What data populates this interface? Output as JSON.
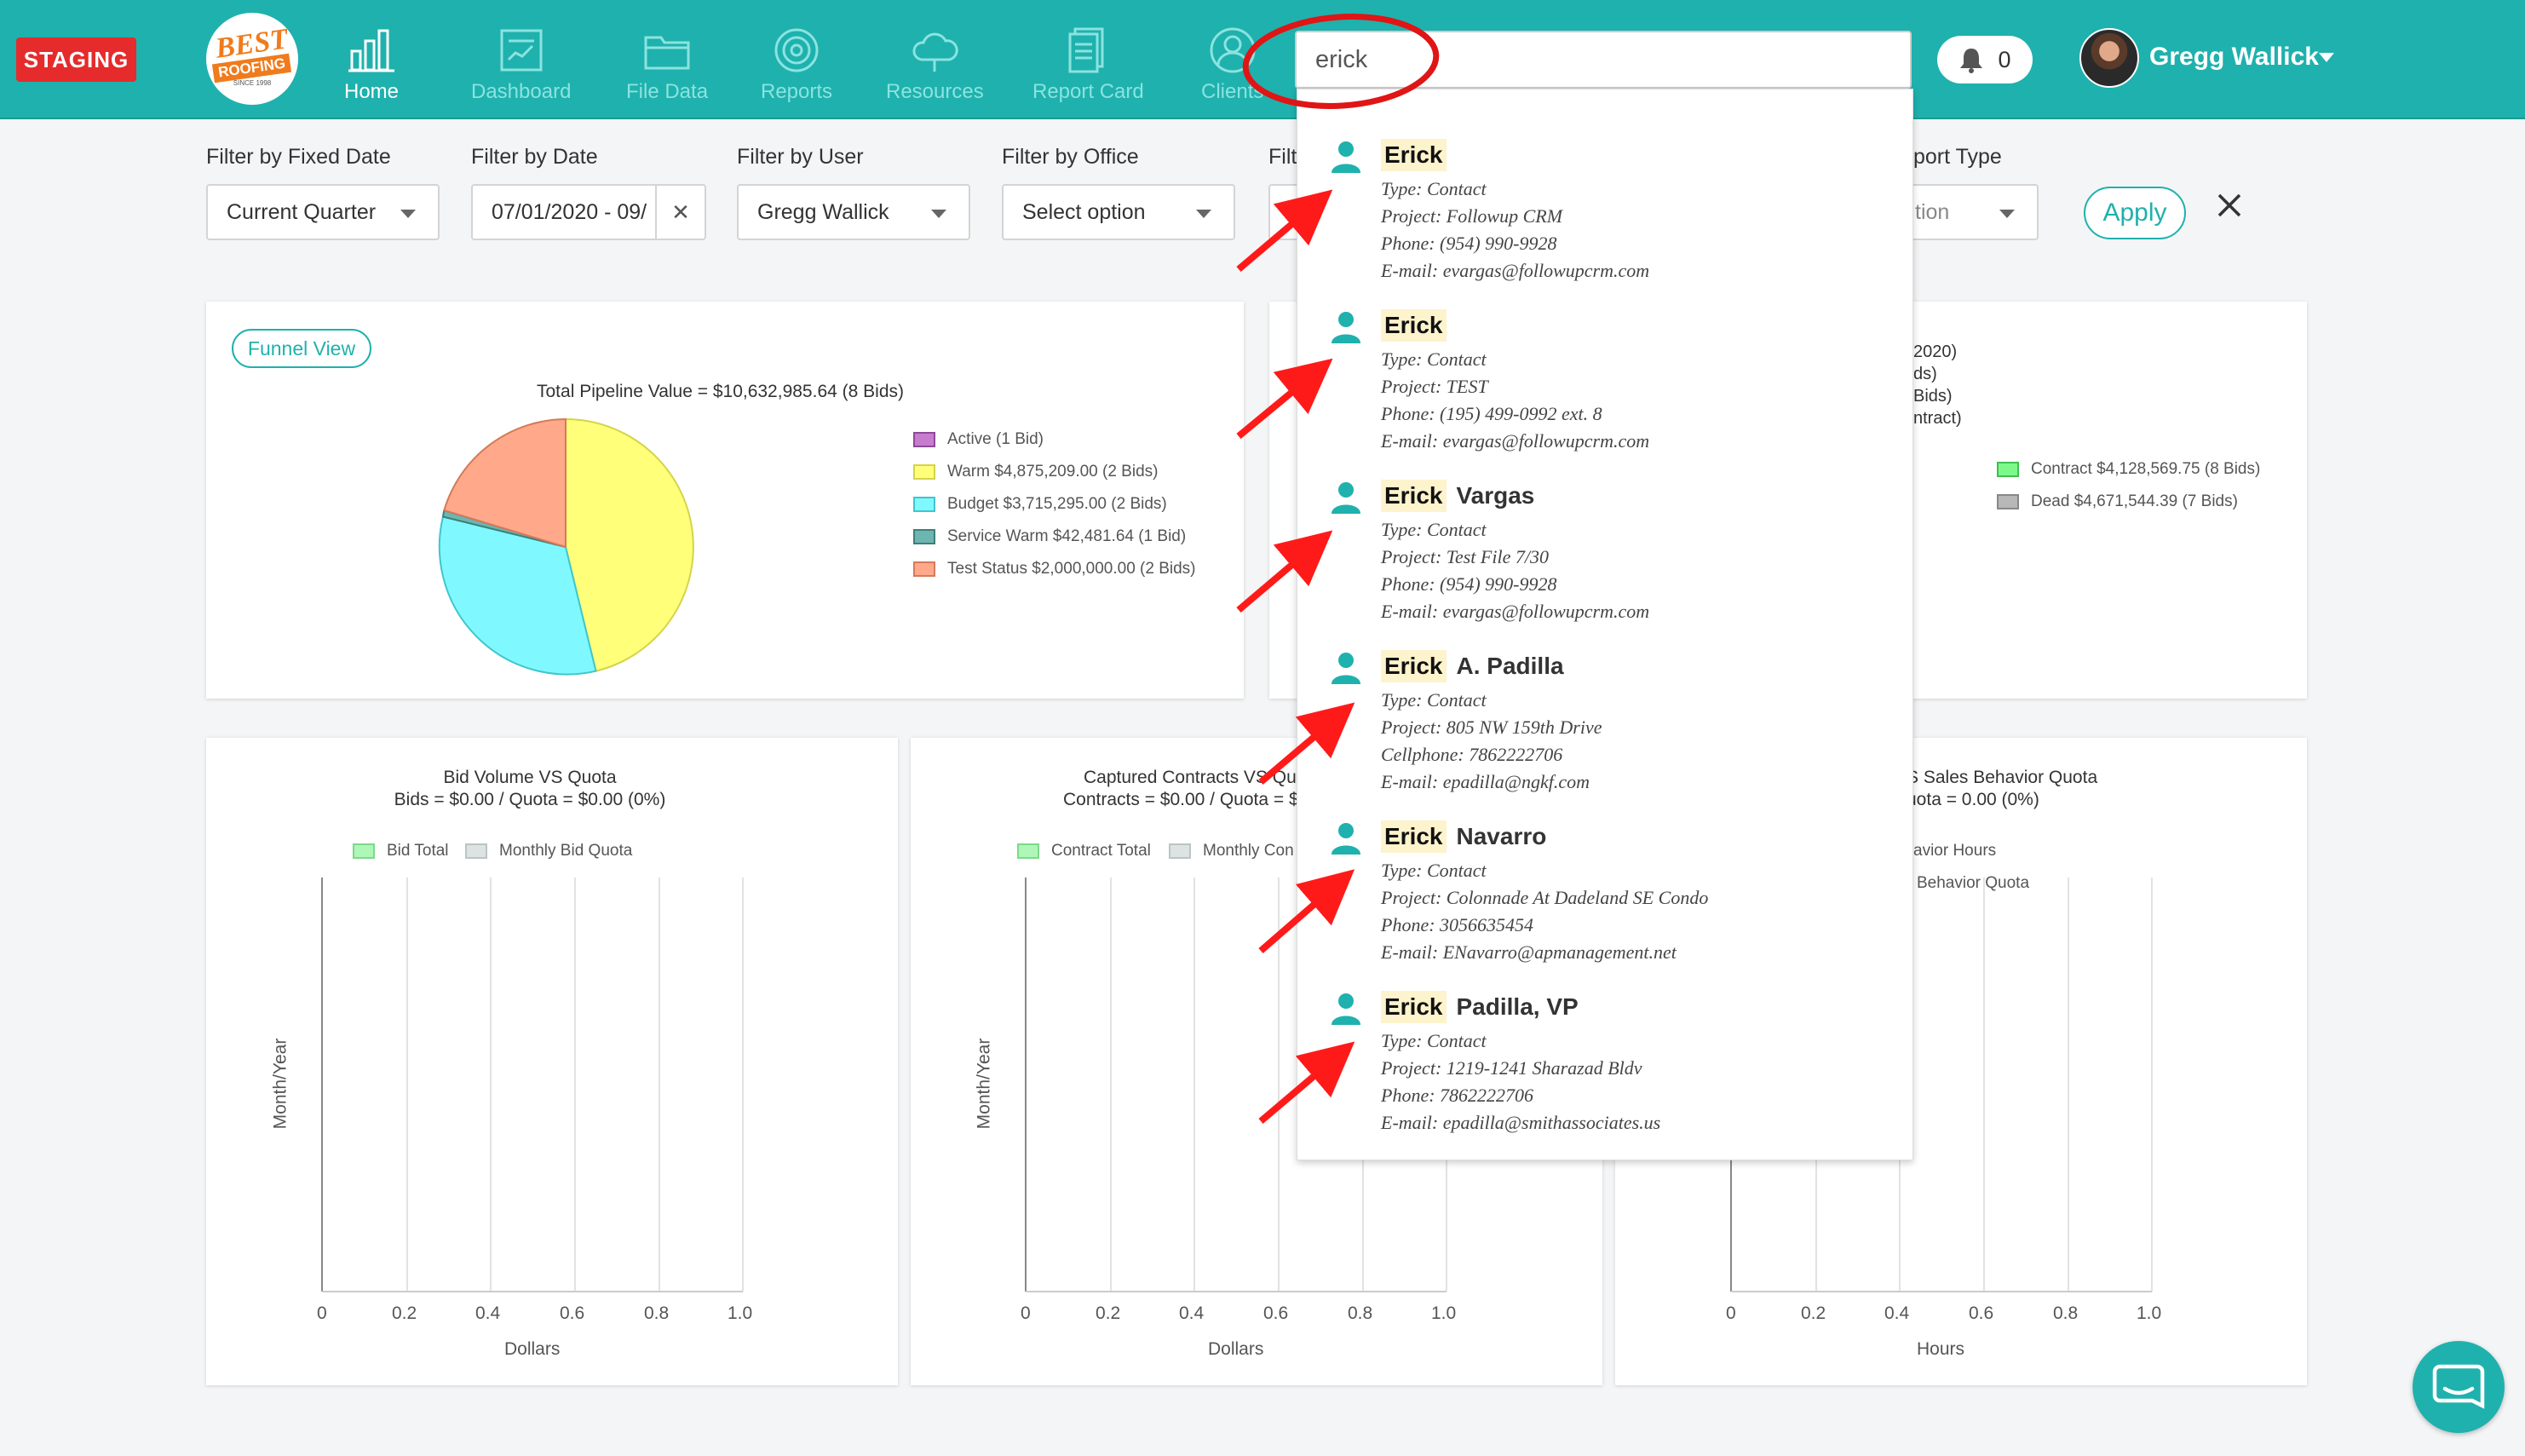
{
  "navbar": {
    "staging_label": "STAGING",
    "logo_line1": "BEST",
    "logo_line2": "ROOFING",
    "logo_line3": "SINCE 1998",
    "items": [
      {
        "label": "Home",
        "icon": "bar-chart-icon"
      },
      {
        "label": "Dashboard",
        "icon": "dashboard-icon"
      },
      {
        "label": "File Data",
        "icon": "folder-icon"
      },
      {
        "label": "Reports",
        "icon": "target-icon"
      },
      {
        "label": "Resources",
        "icon": "cloud-icon"
      },
      {
        "label": "Report Card",
        "icon": "report-card-icon"
      },
      {
        "label": "Clients",
        "icon": "user-icon"
      }
    ],
    "search_value": "erick",
    "notifications_count": "0",
    "user_name": "Gregg Wallick"
  },
  "filters": {
    "fixed_date": {
      "label": "Filter by Fixed Date",
      "value": "Current Quarter"
    },
    "date": {
      "label": "Filter by Date",
      "value": "07/01/2020 - 09/"
    },
    "user": {
      "label": "Filter by User",
      "value": "Gregg Wallick"
    },
    "office": {
      "label": "Filter by Office",
      "value": "Select option"
    },
    "partial_label": "Filt",
    "report_type": {
      "label": "port Type",
      "value": "tion"
    },
    "apply_label": "Apply"
  },
  "funnel": {
    "button_label": "Funnel View",
    "title": "Total Pipeline Value = $10,632,985.64 (8 Bids)",
    "legend": [
      {
        "label": "Active  (1 Bid)",
        "color": "#c77ccf",
        "border": "#8e4a96"
      },
      {
        "label": "Warm $4,875,209.00 (2 Bids)",
        "color": "#ffff7a",
        "border": "#d4d44a"
      },
      {
        "label": "Budget  $3,715,295.00 (2 Bids)",
        "color": "#7ff9ff",
        "border": "#3fc6cc"
      },
      {
        "label": "Service Warm  $42,481.64 (1 Bid)",
        "color": "#6cb5b0",
        "border": "#3f7f7a"
      },
      {
        "label": "Test Status $2,000,000.00 (2 Bids)",
        "color": "#ffa98a",
        "border": "#d47a5a"
      }
    ]
  },
  "card2": {
    "title_lines": [
      "2020)",
      "ds)",
      "Bids)",
      "ntract)"
    ],
    "legend": [
      {
        "label": "Contract $4,128,569.75 (8 Bids)",
        "color": "#7cf98a",
        "border": "#3fbf4f"
      },
      {
        "label": "Dead $4,671,544.39 (7 Bids)",
        "color": "#b7b7b7",
        "border": "#888888"
      }
    ]
  },
  "bar_charts": [
    {
      "title1": "Bid Volume VS Quota",
      "title2": "Bids = $0.00 / Quota = $0.00 (0%)",
      "legend": [
        "Bid Total",
        "Monthly Bid Quota"
      ],
      "ylabel": "Month/Year",
      "xlabel": "Dollars",
      "ticks": [
        "0",
        "0.2",
        "0.4",
        "0.6",
        "0.8",
        "1.0"
      ]
    },
    {
      "title1": "Captured Contracts VS Qu",
      "title2": "Contracts = $0.00 / Quota = $0",
      "legend": [
        "Contract Total",
        "Monthly Con"
      ],
      "ylabel": "Month/Year",
      "xlabel": "Dollars",
      "ticks": [
        "0",
        "0.2",
        "0.4",
        "0.6",
        "0.8",
        "1.0"
      ]
    },
    {
      "title1": "S Sales Behavior Quota",
      "title2": "uota = 0.00 (0%)",
      "legend": [
        "avior Hours",
        "Behavior Quota"
      ],
      "ylabel": "",
      "xlabel": "Hours",
      "ticks": [
        "0",
        "0.2",
        "0.4",
        "0.6",
        "0.8",
        "1.0"
      ]
    }
  ],
  "search_results": [
    {
      "first": "Erick",
      "rest": "",
      "type": "Type: Contact",
      "project": "Project: Followup CRM",
      "phone": "Phone: (954) 990-9928",
      "email": "E-mail: evargas@followupcrm.com"
    },
    {
      "first": "Erick",
      "rest": "",
      "type": "Type: Contact",
      "project": "Project: TEST",
      "phone": "Phone: (195) 499-0992 ext. 8",
      "email": "E-mail: evargas@followupcrm.com"
    },
    {
      "first": "Erick",
      "rest": "Vargas",
      "type": "Type: Contact",
      "project": "Project: Test File 7/30",
      "phone": "Phone: (954) 990-9928",
      "email": "E-mail: evargas@followupcrm.com"
    },
    {
      "first": "Erick",
      "rest": "A. Padilla",
      "type": "Type: Contact",
      "project": "Project: 805 NW 159th Drive",
      "phone": "Cellphone: 7862222706",
      "email": "E-mail: epadilla@ngkf.com"
    },
    {
      "first": "Erick",
      "rest": "Navarro",
      "type": "Type: Contact",
      "project": "Project: Colonnade At Dadeland SE Condo",
      "phone": "Phone: 3056635454",
      "email": "E-mail: ENavarro@apmanagement.net"
    },
    {
      "first": "Erick",
      "rest": "Padilla, VP",
      "type": "Type: Contact",
      "project": "Project: 1219-1241 Sharazad Bldv",
      "phone": "Phone: 7862222706",
      "email": "E-mail: epadilla@smithassociates.us"
    }
  ],
  "colors": {
    "accent": "#1fb1ad",
    "staging": "#e52b2b",
    "annotation": "#ff1a1a"
  }
}
